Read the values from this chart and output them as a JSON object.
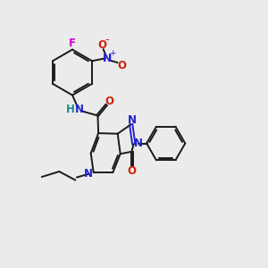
{
  "bg_color": "#ebebeb",
  "bond_color": "#1a1a1a",
  "n_color": "#2222cc",
  "o_color": "#cc2200",
  "f_color": "#cc00cc",
  "h_color": "#228888",
  "bond_width": 1.4,
  "font_size": 8.5,
  "xlim": [
    0,
    10
  ],
  "ylim": [
    0,
    10
  ]
}
